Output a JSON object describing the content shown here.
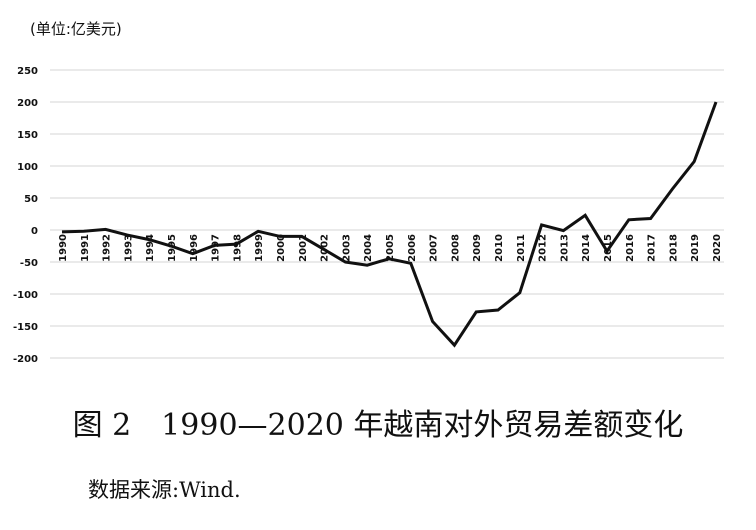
{
  "chart_data": {
    "type": "line",
    "unit_label": "(单位:亿美元)",
    "caption": "图 2　1990—2020 年越南对外贸易差额变化",
    "source": "数据来源:Wind.",
    "x": [
      "1990",
      "1991",
      "1992",
      "1993",
      "1994",
      "1995",
      "1996",
      "1997",
      "1998",
      "1999",
      "2000",
      "2001",
      "2002",
      "2003",
      "2004",
      "2005",
      "2006",
      "2007",
      "2008",
      "2009",
      "2010",
      "2011",
      "2012",
      "2013",
      "2014",
      "2015",
      "2016",
      "2017",
      "2018",
      "2019",
      "2020"
    ],
    "y_ticks": [
      "250",
      "200",
      "150",
      "100",
      "50",
      "0",
      "-50",
      "-100",
      "-150",
      "-200"
    ],
    "ylim": [
      -200,
      250
    ],
    "grid": true,
    "series": [
      {
        "values": [
          -3,
          -2,
          1,
          -8,
          -15,
          -25,
          -37,
          -24,
          -22,
          -2,
          -10,
          -10,
          -30,
          -50,
          -55,
          -45,
          -52,
          -143,
          -180,
          -128,
          -125,
          -98,
          8,
          -1,
          23,
          -33,
          16,
          18,
          64,
          107,
          200
        ],
        "color": "#111111"
      }
    ],
    "colors": {
      "line": "#111111",
      "grid": "#d6d6d6",
      "text": "#111111"
    }
  }
}
